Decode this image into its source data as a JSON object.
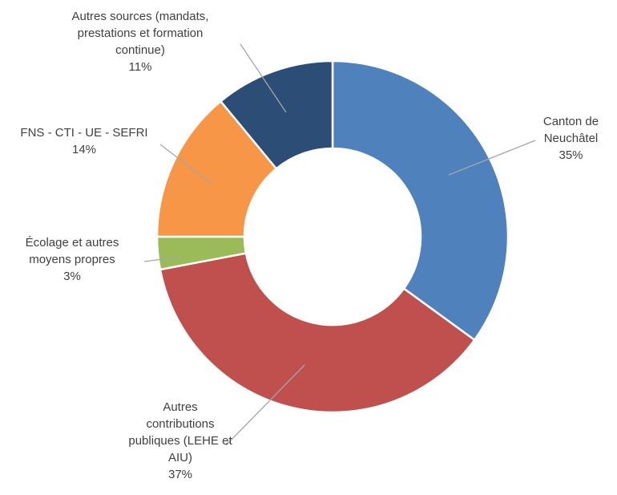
{
  "chart_data": {
    "type": "donut",
    "categories": [
      "Canton de Neuchâtel",
      "Autres contributions publiques (LEHE et AIU)",
      "Écolage et autres moyens propres",
      "FNS - CTI - UE - SEFRI",
      "Autres sources (mandats, prestations et formation continue)"
    ],
    "values": [
      35,
      37,
      3,
      14,
      11
    ],
    "value_labels": [
      "35%",
      "37%",
      "3%",
      "14%",
      "11%"
    ],
    "colors": [
      "#4f81bd",
      "#c0504d",
      "#9bbb59",
      "#f79646",
      "#2c4d75"
    ]
  }
}
